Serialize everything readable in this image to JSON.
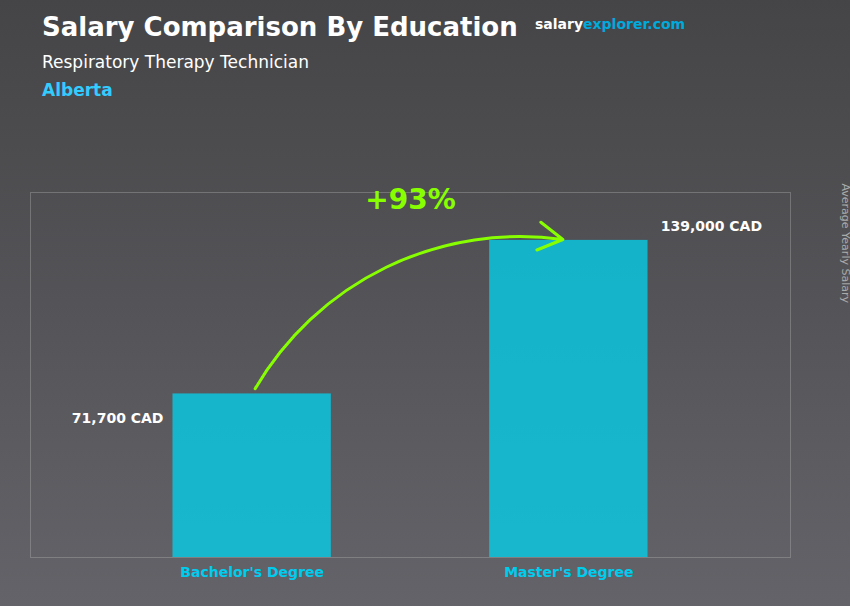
{
  "chart_data": {
    "type": "bar",
    "title": "Salary Comparison By Education",
    "subtitle": "Respiratory Therapy Technician",
    "annotations": [
      "+93%",
      "Alberta",
      "salary",
      "explorer.com"
    ],
    "ylabel": "Average Yearly Salary",
    "categories": [
      "Bachelor's Degree",
      "Master's Degree"
    ],
    "values": [
      71700,
      139000
    ],
    "value_labels": [
      "71,700 CAD",
      "139,000 CAD"
    ],
    "data_labels": true,
    "color": "#00d4f0",
    "ylim": [
      0,
      160000
    ],
    "tick_labels": "x",
    "grid": false
  }
}
